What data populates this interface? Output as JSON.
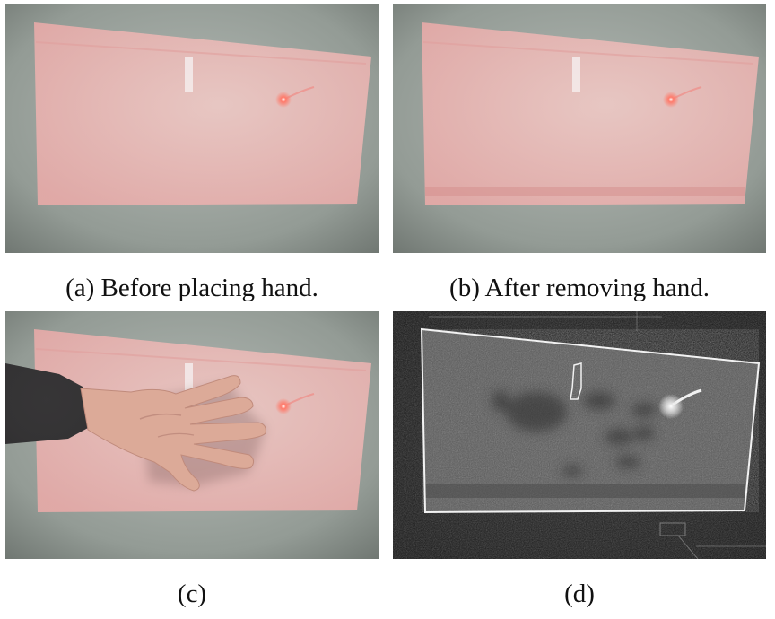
{
  "figure": {
    "panels": [
      {
        "id": "a",
        "caption": "(a) Before placing hand."
      },
      {
        "id": "b",
        "caption": "(b) After removing hand."
      },
      {
        "id": "c",
        "caption": "(c)"
      },
      {
        "id": "d",
        "caption": "(d)"
      }
    ],
    "colors": {
      "wall": "#8e9690",
      "projection": "#e8b7b4",
      "laser": "#ff5a4a",
      "diff_background": "#1b1b1b",
      "diff_outline": "#f2f2f2"
    }
  }
}
